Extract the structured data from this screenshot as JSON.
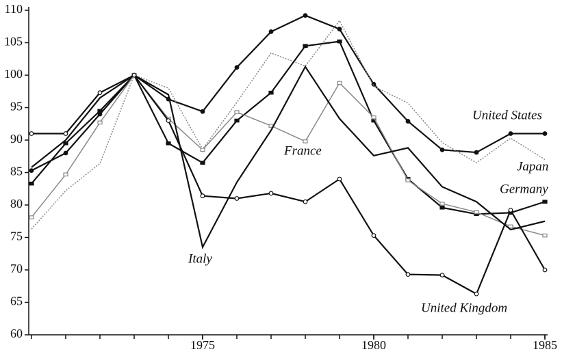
{
  "chart_data": {
    "type": "line",
    "x": [
      1970,
      1971,
      1972,
      1973,
      1974,
      1975,
      1976,
      1977,
      1978,
      1979,
      1980,
      1981,
      1982,
      1983,
      1984,
      1985
    ],
    "xlim": [
      1970,
      1985
    ],
    "xticks": [
      1975,
      1980,
      1985
    ],
    "ylim": [
      60,
      110
    ],
    "yticks": [
      60,
      65,
      70,
      75,
      80,
      85,
      90,
      95,
      100,
      105,
      110
    ],
    "series": [
      {
        "name": "United States",
        "color": "#111111",
        "dash": "solid",
        "marker": "filled-circle",
        "values": [
          85.3,
          88,
          94,
          100,
          96.3,
          94.4,
          101.2,
          106.7,
          109.2,
          107.1,
          98.6,
          92.9,
          88.5,
          88.1,
          91,
          91
        ]
      },
      {
        "name": "Japan",
        "color": "#888888",
        "dash": "dotted",
        "marker": "none",
        "values": [
          76.3,
          82.2,
          86.4,
          100,
          98,
          88.6,
          95.8,
          103.4,
          101.4,
          108.4,
          98.3,
          95.7,
          89.6,
          86.5,
          90.3,
          87
        ]
      },
      {
        "name": "Germany",
        "color": "#111111",
        "dash": "solid",
        "marker": "filled-square",
        "values": [
          83.3,
          89.5,
          94.5,
          100,
          89.5,
          86.5,
          93,
          97.3,
          104.5,
          105.2,
          93,
          84,
          79.6,
          78.6,
          78.8,
          80.5
        ]
      },
      {
        "name": "France",
        "color": "#888888",
        "dash": "solid",
        "marker": "open-square",
        "values": [
          78.1,
          84.7,
          92.7,
          100,
          93.3,
          88.5,
          94.3,
          92.2,
          89.8,
          98.8,
          93.5,
          83.8,
          80.2,
          78.9,
          76.7,
          75.3
        ]
      },
      {
        "name": "Italy",
        "color": "#111111",
        "dash": "solid",
        "marker": "none",
        "values": [
          85.8,
          90,
          96.5,
          100,
          97,
          73.5,
          83.5,
          91.5,
          101.3,
          93.3,
          87.6,
          88.8,
          82.8,
          80.5,
          76.2,
          77.5
        ]
      },
      {
        "name": "United Kingdom",
        "color": "#111111",
        "dash": "solid",
        "marker": "open-circle",
        "values": [
          91,
          91,
          97.3,
          100,
          93,
          81.4,
          81,
          81.8,
          80.5,
          84,
          75.3,
          69.3,
          69.2,
          66.3,
          79.2,
          70
        ]
      }
    ]
  }
}
